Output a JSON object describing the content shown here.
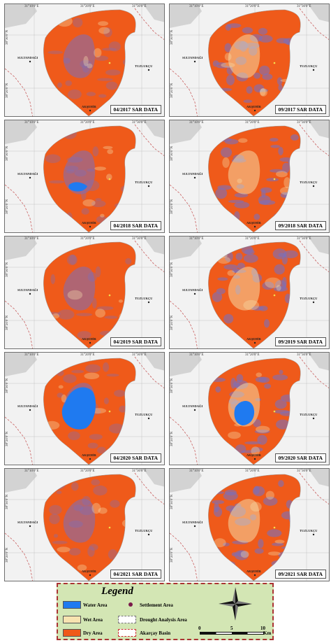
{
  "colors": {
    "water": "#1f7af0",
    "wet": "#f7e3b0",
    "dry": "#ef5a1a",
    "mixed": "#7a6fbd",
    "basemap": "#f2f2f2",
    "land_gray": "#d3d3d3",
    "basin_line": "#c96060",
    "legend_bg": "#d3e6b4"
  },
  "grid_labels": {
    "lon_1": "31°10'0\"E",
    "lon_2": "31°20'0\"E",
    "lon_3": "31°30'0\"E",
    "lat_1": "38°30'0\"N",
    "lat_2": "38°20'0\"N"
  },
  "places": {
    "sultandagi": "SULTANDAĞI",
    "tuzlukcu": "TUZLUKÇU",
    "aksehir": "AKŞEHİR"
  },
  "panels": [
    {
      "caption": "04/2017 SAR DATA",
      "water": "low"
    },
    {
      "caption": "09/2017 SAR DATA",
      "water": "none"
    },
    {
      "caption": "04/2018 SAR DATA",
      "water": "small"
    },
    {
      "caption": "09/2018 SAR DATA",
      "water": "none"
    },
    {
      "caption": "04/2019 SAR DATA",
      "water": "low"
    },
    {
      "caption": "09/2019 SAR DATA",
      "water": "none"
    },
    {
      "caption": "04/2020 SAR DATA",
      "water": "large"
    },
    {
      "caption": "09/2020 SAR DATA",
      "water": "medium"
    },
    {
      "caption": "04/2021 SAR DATA",
      "water": "none"
    },
    {
      "caption": "09/2021 SAR DATA",
      "water": "none"
    }
  ],
  "legend": {
    "title": "Legend",
    "water_area": "Water Area",
    "wet_area": "Wet Area",
    "dry_area": "Dry Area",
    "settlement_area": "Settlement Area",
    "drought_analysis_area": "Drought Analysis Area",
    "akarcay_basin": "Akarçay Basin",
    "scale_0": "0",
    "scale_5": "5",
    "scale_10": "10",
    "scale_unit": "Km",
    "north_arrow": "north-arrow-icon"
  }
}
